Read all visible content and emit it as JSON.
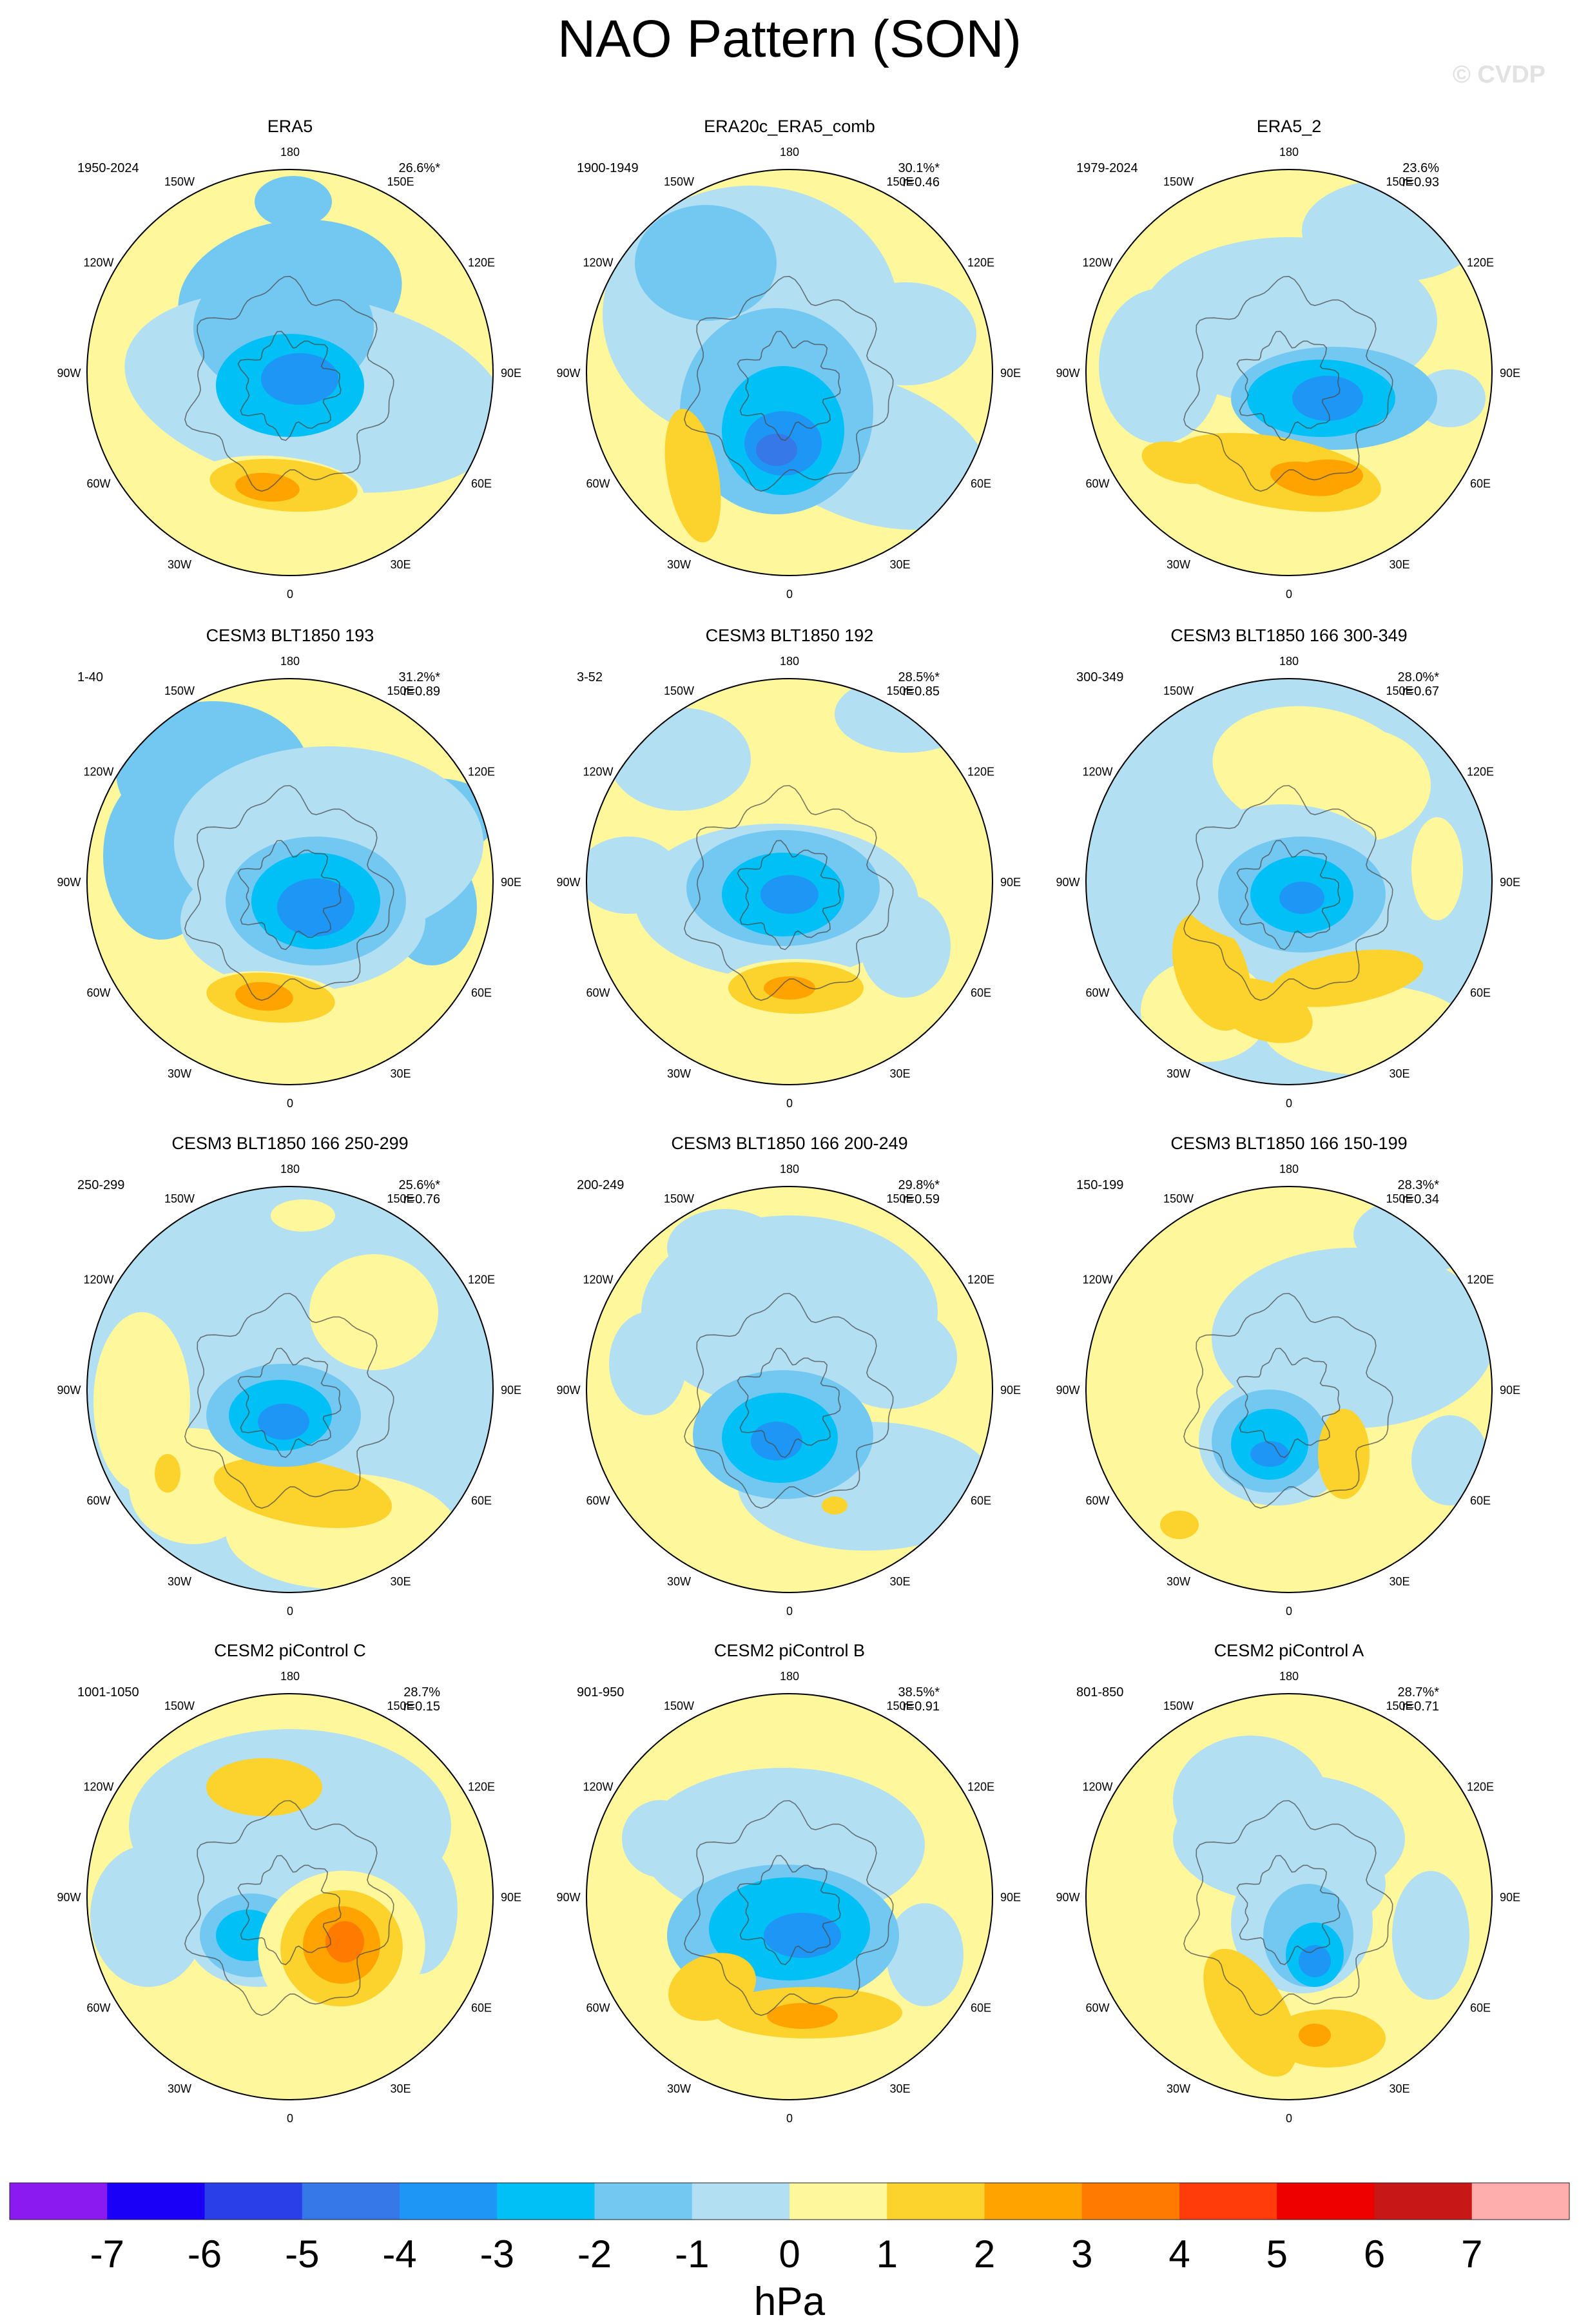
{
  "figure": {
    "title": "NAO Pattern (SON)",
    "watermark": "© CVDP",
    "units": "hPa"
  },
  "chart_data": {
    "type": "heatmap",
    "projection": "polar stereographic (Northern Hemisphere)",
    "grid": false,
    "longitude_labels": [
      "180",
      "150E",
      "120E",
      "90E",
      "60E",
      "30E",
      "0",
      "30W",
      "60W",
      "90W",
      "120W",
      "150W"
    ],
    "colorbar": {
      "levels": [
        "-7",
        "-6",
        "-5",
        "-4",
        "-3",
        "-2",
        "-1",
        "0",
        "1",
        "2",
        "3",
        "4",
        "5",
        "6",
        "7"
      ],
      "colors": [
        "#8a1af0",
        "#1a00f6",
        "#2b3fe8",
        "#3778e8",
        "#1e96f5",
        "#00c0f5",
        "#73c8f2",
        "#b3dff3",
        "#fff79c",
        "#fcd22c",
        "#ffa300",
        "#ff7a00",
        "#ff3c0a",
        "#ee0000",
        "#c81717",
        "#ffaeae"
      ]
    },
    "panels": [
      {
        "title": "ERA5",
        "period": "1950-2024",
        "pct": "26.6%*",
        "r": ""
      },
      {
        "title": "ERA20c_ERA5_comb",
        "period": "1900-1949",
        "pct": "30.1%*",
        "r": "r=0.46"
      },
      {
        "title": "ERA5_2",
        "period": "1979-2024",
        "pct": "23.6%",
        "r": "r=0.93"
      },
      {
        "title": "CESM3 BLT1850 193",
        "period": "1-40",
        "pct": "31.2%*",
        "r": "r=0.89"
      },
      {
        "title": "CESM3 BLT1850 192",
        "period": "3-52",
        "pct": "28.5%*",
        "r": "r=0.85"
      },
      {
        "title": "CESM3 BLT1850 166 300-349",
        "period": "300-349",
        "pct": "28.0%*",
        "r": "r=0.67"
      },
      {
        "title": "CESM3 BLT1850 166 250-299",
        "period": "250-299",
        "pct": "25.6%*",
        "r": "r=0.76"
      },
      {
        "title": "CESM3 BLT1850 166 200-249",
        "period": "200-249",
        "pct": "29.8%*",
        "r": "r=0.59"
      },
      {
        "title": "CESM3 BLT1850 166 150-199",
        "period": "150-199",
        "pct": "28.3%*",
        "r": "r=0.34"
      },
      {
        "title": "CESM2 piControl C",
        "period": "1001-1050",
        "pct": "28.7%",
        "r": "r=0.15"
      },
      {
        "title": "CESM2 piControl B",
        "period": "901-950",
        "pct": "38.5%*",
        "r": "r=0.91"
      },
      {
        "title": "CESM2 piControl A",
        "period": "801-850",
        "pct": "28.7%*",
        "r": "r=0.71"
      }
    ]
  }
}
